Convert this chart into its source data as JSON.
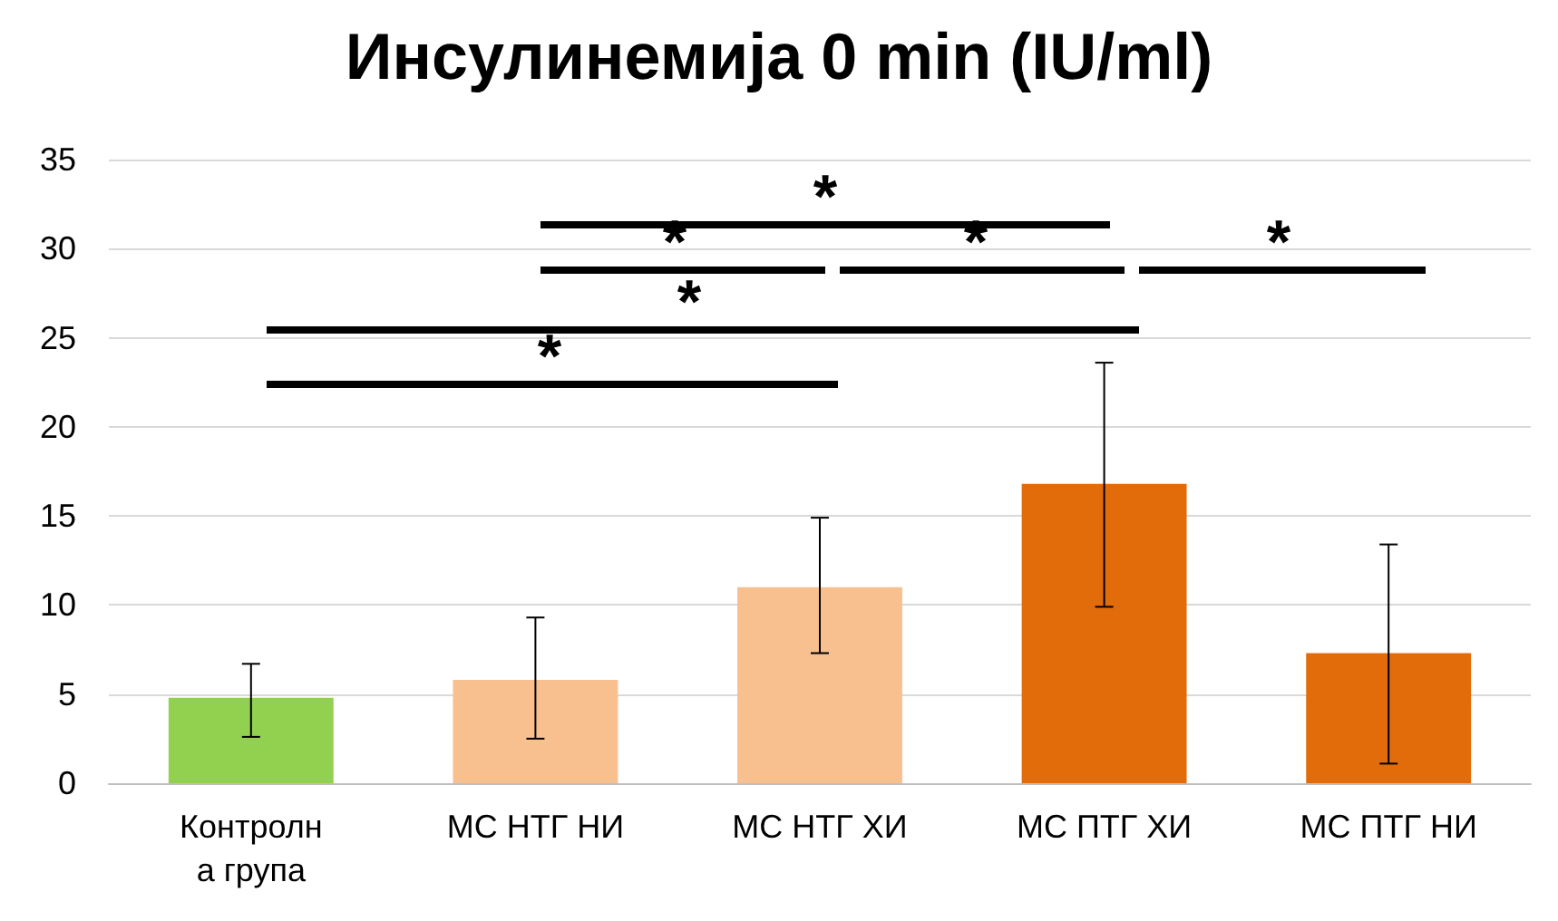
{
  "chart_data": {
    "type": "bar",
    "title": "Инсулинемија 0 min (IU/ml)",
    "categories": [
      "Контролна група",
      "МС НТГ НИ",
      "МС НТГ ХИ",
      "МС ПТГ ХИ",
      "МС ПТГ НИ"
    ],
    "values": [
      4.8,
      5.8,
      11,
      16.8,
      7.3
    ],
    "colors": [
      "#92d050",
      "#f8c08f",
      "#f8c08f",
      "#e36c0a",
      "#e36c0a"
    ],
    "errors": [
      [
        2.6,
        6.7
      ],
      [
        2.5,
        9.3
      ],
      [
        7.3,
        14.9
      ],
      [
        9.9,
        23.6
      ],
      [
        1.1,
        13.4
      ]
    ],
    "ylim": [
      0,
      35
    ],
    "yticks": [
      0,
      5,
      10,
      15,
      20,
      25,
      30,
      35
    ],
    "grid": "y",
    "annotations": [
      "*",
      "*",
      "*",
      "*",
      "*",
      "*"
    ]
  }
}
